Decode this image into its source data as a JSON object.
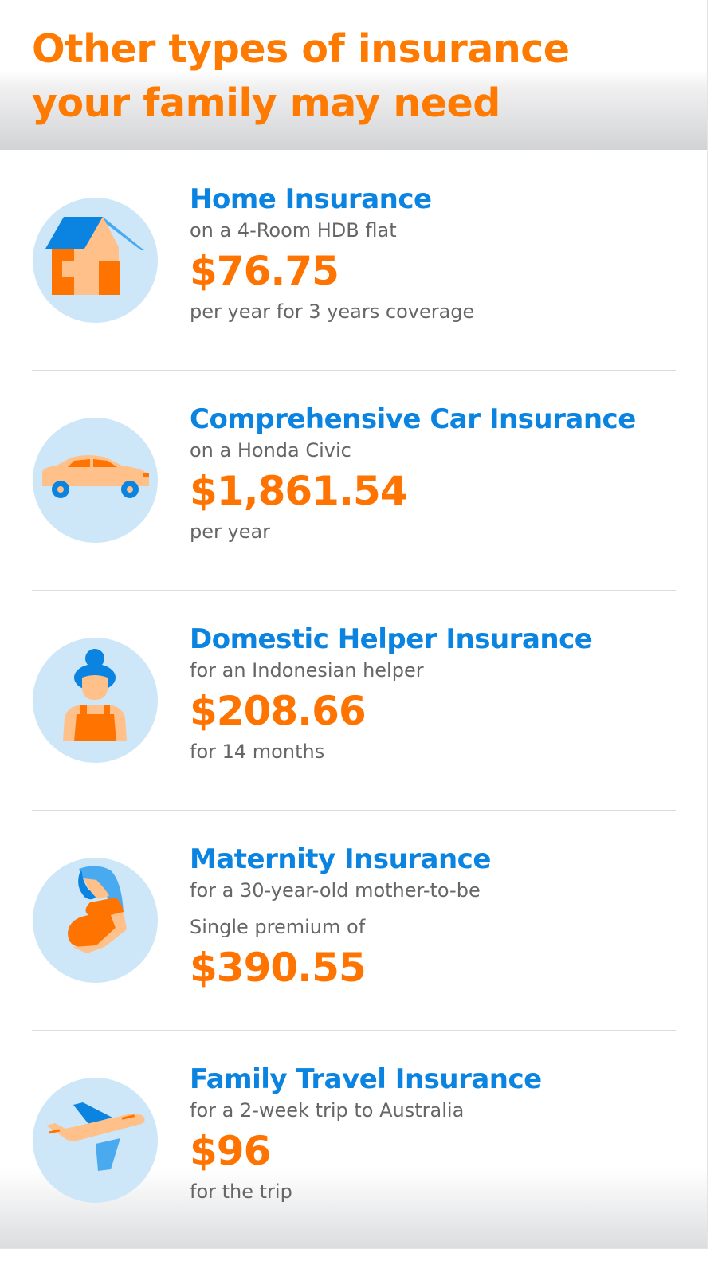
{
  "header": {
    "title_line1": "Other types of insurance",
    "title_line2": "your family may need"
  },
  "colors": {
    "accent": "#ff7300",
    "heading": "#0a84e0",
    "text": "#666666",
    "circle": "#cde6f8"
  },
  "items": [
    {
      "name": "Home Insurance",
      "subtitle": "on a 4-Room HDB flat",
      "price": "$76.75",
      "caption": "per year for 3 years coverage",
      "icon": "house-icon"
    },
    {
      "name": "Comprehensive Car Insurance",
      "subtitle": "on a Honda Civic",
      "price": "$1,861.54",
      "caption": "per year",
      "icon": "car-icon"
    },
    {
      "name": "Domestic Helper Insurance",
      "subtitle": "for an Indonesian helper",
      "price": "$208.66",
      "caption": "for 14 months",
      "icon": "helper-icon"
    },
    {
      "name": "Maternity Insurance",
      "subtitle": "for a 30-year-old mother-to-be",
      "pre_price": "Single premium of",
      "price": "$390.55",
      "icon": "pregnant-woman-icon"
    },
    {
      "name": "Family Travel Insurance",
      "subtitle": "for a 2-week trip to Australia",
      "price": "$96",
      "caption": "for the trip",
      "icon": "airplane-icon"
    }
  ]
}
